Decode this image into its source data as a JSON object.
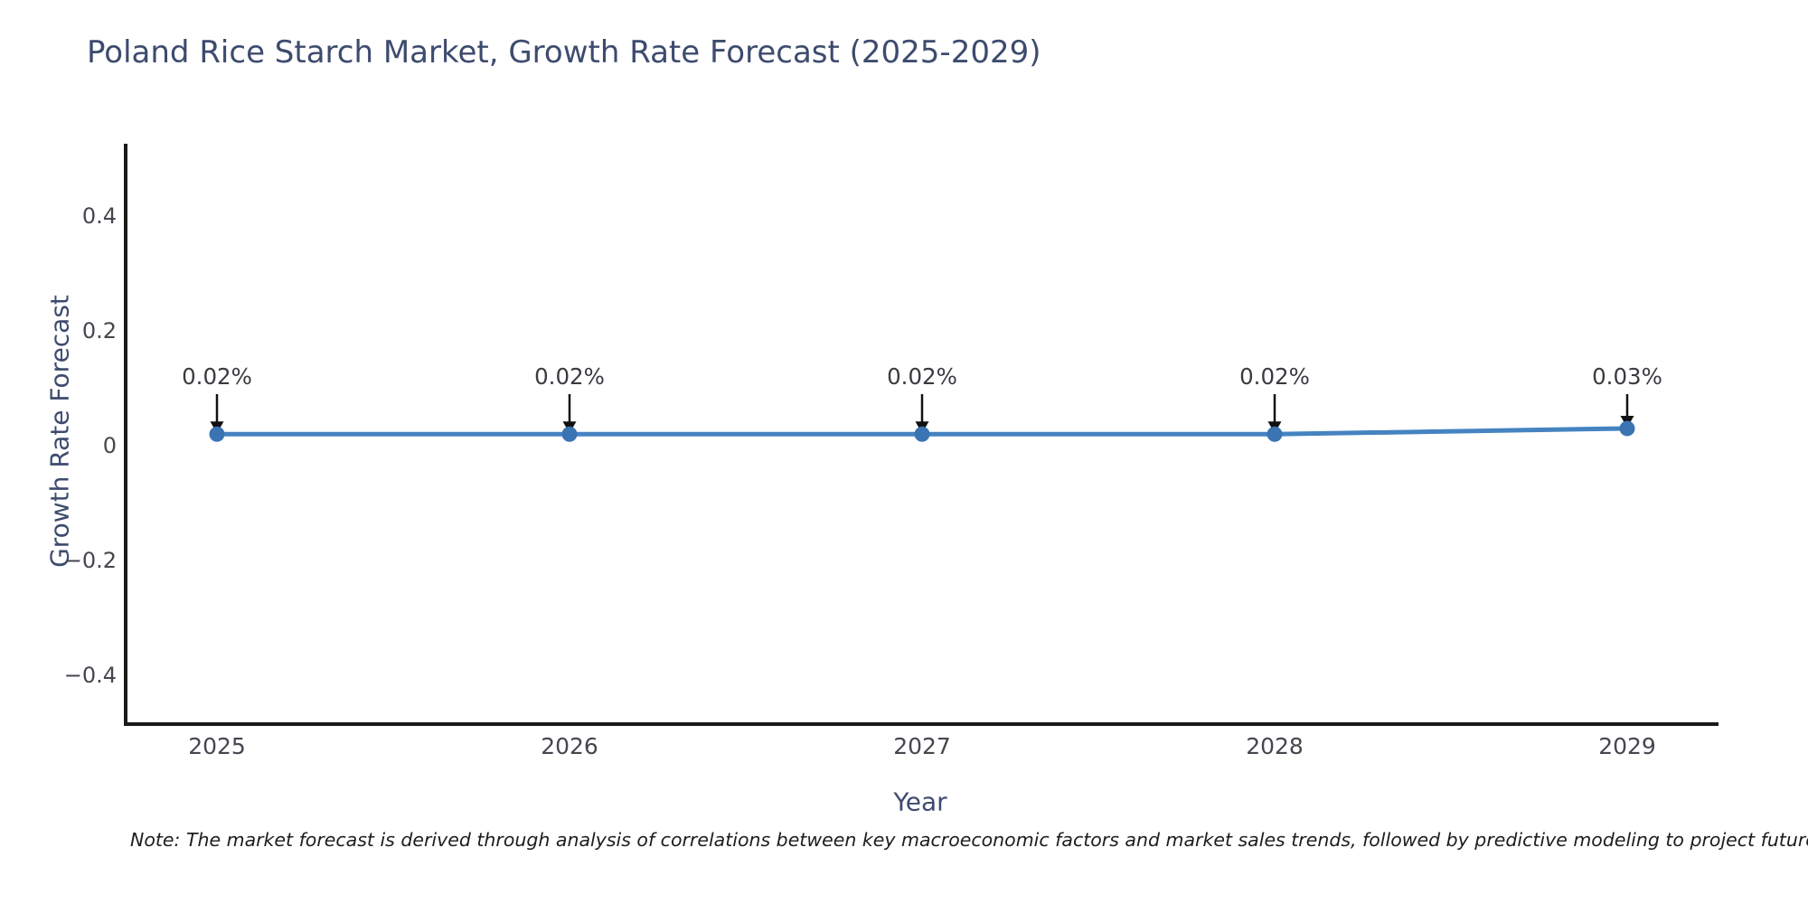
{
  "note": "Note: The market forecast is derived through analysis of correlations between key macroeconomic factors and market sales trends, followed by predictive modeling to project future sales",
  "chart_data": {
    "type": "line",
    "title": "Poland Rice Starch Market, Growth Rate Forecast (2025-2029)",
    "xlabel": "Year",
    "ylabel": "Growth Rate Forecast",
    "x": [
      2025,
      2026,
      2027,
      2028,
      2029
    ],
    "values": [
      0.02,
      0.02,
      0.02,
      0.02,
      0.03
    ],
    "point_labels": [
      "0.02%",
      "0.02%",
      "0.02%",
      "0.02%",
      "0.03%"
    ],
    "xtick_labels": [
      "2025",
      "2026",
      "2027",
      "2028",
      "2029"
    ],
    "ytick_values": [
      0.4,
      0.2,
      0,
      -0.2,
      -0.4
    ],
    "ytick_labels": [
      "0.4",
      "0.2",
      "0",
      "−0.2",
      "−0.4"
    ],
    "ylim": [
      -0.48,
      0.53
    ],
    "grid": false,
    "legend": "none",
    "line_color": "#4583c1",
    "marker_color": "#3a74b2",
    "arrow_color": "#111111",
    "spine_color": "#1a1a1a"
  }
}
